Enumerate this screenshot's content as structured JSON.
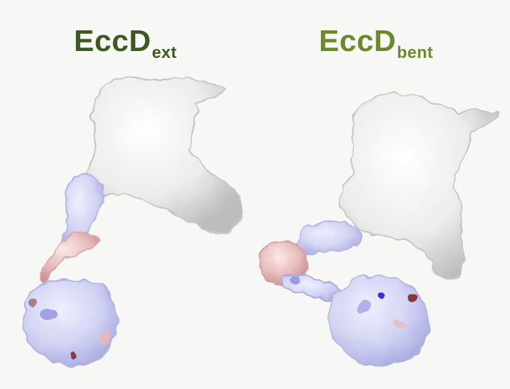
{
  "figure": {
    "left_title": {
      "main": "EccD",
      "sub": "ext",
      "color": "#3d5a23"
    },
    "right_title": {
      "main": "EccD",
      "sub": "bent",
      "color": "#6b8a2c"
    }
  },
  "colors": {
    "background": "#f7f8f5",
    "surface_white": "#eeeeee",
    "surface_shadow": "#bdbdbd",
    "surface_blue": "#c9c9ee",
    "surface_blue_dark": "#8a8ae0",
    "surface_red": "#e9b9b9",
    "surface_red_dark": "#7a1c1c"
  },
  "panels": [
    {
      "id": "ext",
      "description_name": "protein-surface-ext"
    },
    {
      "id": "bent",
      "description_name": "protein-surface-bent"
    }
  ]
}
